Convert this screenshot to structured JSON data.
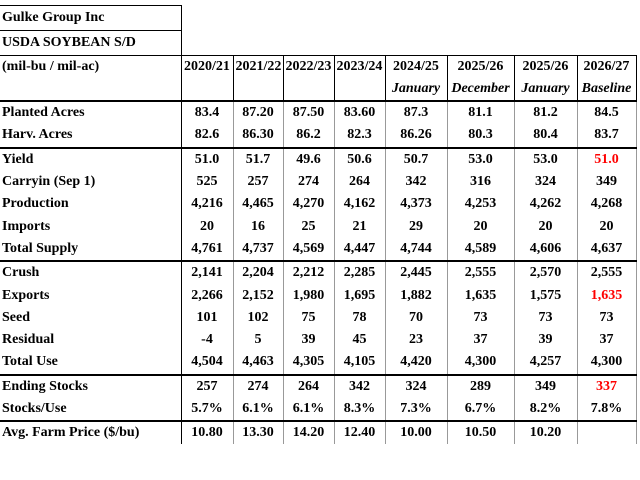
{
  "header": {
    "company": "Gulke Group Inc",
    "title": "USDA SOYBEAN S/D",
    "units": "(mil-bu / mil-ac)",
    "years": [
      "2020/21",
      "2021/22",
      "2022/23",
      "2023/24",
      "2024/25",
      "2025/26",
      "2025/26",
      "2026/27"
    ],
    "subheaders": [
      null,
      null,
      null,
      null,
      "January",
      "December",
      "January",
      "Baseline"
    ]
  },
  "emphasis_color": "#ff0000",
  "rows": [
    {
      "label": "Planted Acres",
      "cells": [
        "83.4",
        "87.20",
        "87.50",
        "83.60",
        "87.3",
        "81.1",
        "81.2",
        "84.5"
      ]
    },
    {
      "label": "Harv. Acres",
      "cells": [
        "82.6",
        "86.30",
        "86.2",
        "82.3",
        "86.26",
        "80.3",
        "80.4",
        "83.7"
      ]
    },
    {
      "label": "Yield",
      "cells": [
        "51.0",
        "51.7",
        "49.6",
        "50.6",
        "50.7",
        "53.0",
        "53.0",
        "51.0"
      ],
      "emphasis_cells": [
        7
      ]
    },
    {
      "label": "Carryin (Sep 1)",
      "cells": [
        "525",
        "257",
        "274",
        "264",
        "342",
        "316",
        "324",
        "349"
      ]
    },
    {
      "label": "Production",
      "cells": [
        "4,216",
        "4,465",
        "4,270",
        "4,162",
        "4,373",
        "4,253",
        "4,262",
        "4,268"
      ]
    },
    {
      "label": "Imports",
      "cells": [
        "20",
        "16",
        "25",
        "21",
        "29",
        "20",
        "20",
        "20"
      ]
    },
    {
      "label": "Total Supply",
      "cells": [
        "4,761",
        "4,737",
        "4,569",
        "4,447",
        "4,744",
        "4,589",
        "4,606",
        "4,637"
      ]
    },
    {
      "label": "Crush",
      "cells": [
        "2,141",
        "2,204",
        "2,212",
        "2,285",
        "2,445",
        "2,555",
        "2,570",
        "2,555"
      ]
    },
    {
      "label": "Exports",
      "cells": [
        "2,266",
        "2,152",
        "1,980",
        "1,695",
        "1,882",
        "1,635",
        "1,575",
        "1,635"
      ],
      "emphasis_cells": [
        7
      ]
    },
    {
      "label": "Seed",
      "cells": [
        "101",
        "102",
        "75",
        "78",
        "70",
        "73",
        "73",
        "73"
      ]
    },
    {
      "label": "Residual",
      "cells": [
        "-4",
        "5",
        "39",
        "45",
        "23",
        "37",
        "39",
        "37"
      ]
    },
    {
      "label": "Total Use",
      "cells": [
        "4,504",
        "4,463",
        "4,305",
        "4,105",
        "4,420",
        "4,300",
        "4,257",
        "4,300"
      ]
    },
    {
      "label": "Ending Stocks",
      "cells": [
        "257",
        "274",
        "264",
        "342",
        "324",
        "289",
        "349",
        "337"
      ],
      "emphasis_cells": [
        7
      ]
    },
    {
      "label": "Stocks/Use",
      "cells": [
        "5.7%",
        "6.1%",
        "6.1%",
        "8.3%",
        "7.3%",
        "6.7%",
        "8.2%",
        "7.8%"
      ]
    },
    {
      "label": "Avg. Farm Price ($/bu)",
      "cells": [
        "10.80",
        "13.30",
        "14.20",
        "12.40",
        "10.00",
        "10.50",
        "10.20",
        null
      ]
    }
  ]
}
